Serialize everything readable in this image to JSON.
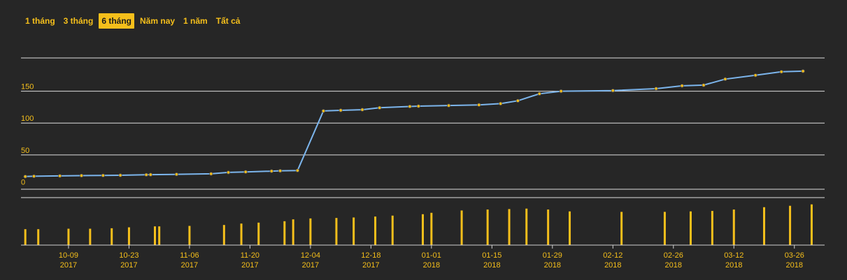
{
  "range_selector": {
    "buttons": [
      "1 tháng",
      "3 tháng",
      "6 tháng",
      "Năm nay",
      "1 năm",
      "Tất cả"
    ],
    "active_index": 2
  },
  "colors": {
    "background": "#262626",
    "line": "#7cb5ec",
    "marker_fill": "#f5bf1b",
    "volume_bar": "#f5bf1b",
    "gridline": "#ffffff",
    "text": "#f5bf1b"
  },
  "chart_data": {
    "type": "line",
    "title": "",
    "x_axis": {
      "type": "date",
      "min": "2017-09-28",
      "max": "2018-04-02",
      "ticks": [
        {
          "date": "2017-10-09",
          "day_label": "10-09",
          "year_label": "2017"
        },
        {
          "date": "2017-10-23",
          "day_label": "10-23",
          "year_label": "2017"
        },
        {
          "date": "2017-11-06",
          "day_label": "11-06",
          "year_label": "2017"
        },
        {
          "date": "2017-11-20",
          "day_label": "11-20",
          "year_label": "2017"
        },
        {
          "date": "2017-12-04",
          "day_label": "12-04",
          "year_label": "2017"
        },
        {
          "date": "2017-12-18",
          "day_label": "12-18",
          "year_label": "2017"
        },
        {
          "date": "2018-01-01",
          "day_label": "01-01",
          "year_label": "2018"
        },
        {
          "date": "2018-01-15",
          "day_label": "01-15",
          "year_label": "2018"
        },
        {
          "date": "2018-01-29",
          "day_label": "01-29",
          "year_label": "2018"
        },
        {
          "date": "2018-02-12",
          "day_label": "02-12",
          "year_label": "2018"
        },
        {
          "date": "2018-02-26",
          "day_label": "02-26",
          "year_label": "2018"
        },
        {
          "date": "2018-03-12",
          "day_label": "03-12",
          "year_label": "2018"
        },
        {
          "date": "2018-03-26",
          "day_label": "03-26",
          "year_label": "2018"
        }
      ]
    },
    "y_axis": {
      "min": -5,
      "max": 200,
      "grid": true,
      "ticks": [
        0,
        50,
        100,
        150
      ]
    },
    "series": [
      {
        "type": "line",
        "points": [
          {
            "x": "2017-09-29",
            "y": 16
          },
          {
            "x": "2017-10-01",
            "y": 16.5
          },
          {
            "x": "2017-10-07",
            "y": 17
          },
          {
            "x": "2017-10-12",
            "y": 17.5
          },
          {
            "x": "2017-10-17",
            "y": 17.7
          },
          {
            "x": "2017-10-21",
            "y": 18
          },
          {
            "x": "2017-10-27",
            "y": 18.8
          },
          {
            "x": "2017-10-28",
            "y": 19
          },
          {
            "x": "2017-11-03",
            "y": 19.5
          },
          {
            "x": "2017-11-11",
            "y": 20.3
          },
          {
            "x": "2017-11-15",
            "y": 22.5
          },
          {
            "x": "2017-11-19",
            "y": 23.3
          },
          {
            "x": "2017-11-25",
            "y": 24.5
          },
          {
            "x": "2017-11-27",
            "y": 25
          },
          {
            "x": "2017-12-01",
            "y": 25.5
          },
          {
            "x": "2017-12-07",
            "y": 119
          },
          {
            "x": "2017-12-11",
            "y": 120
          },
          {
            "x": "2017-12-16",
            "y": 121
          },
          {
            "x": "2017-12-20",
            "y": 124
          },
          {
            "x": "2017-12-27",
            "y": 126
          },
          {
            "x": "2017-12-29",
            "y": 126.5
          },
          {
            "x": "2018-01-05",
            "y": 127.5
          },
          {
            "x": "2018-01-12",
            "y": 128.5
          },
          {
            "x": "2018-01-17",
            "y": 130.5
          },
          {
            "x": "2018-01-21",
            "y": 135
          },
          {
            "x": "2018-01-26",
            "y": 146
          },
          {
            "x": "2018-01-31",
            "y": 150
          },
          {
            "x": "2018-02-12",
            "y": 151
          },
          {
            "x": "2018-02-22",
            "y": 154
          },
          {
            "x": "2018-02-28",
            "y": 158.5
          },
          {
            "x": "2018-03-05",
            "y": 159.5
          },
          {
            "x": "2018-03-10",
            "y": 169
          },
          {
            "x": "2018-03-17",
            "y": 175
          },
          {
            "x": "2018-03-23",
            "y": 180.5
          },
          {
            "x": "2018-03-28",
            "y": 181.5
          }
        ]
      },
      {
        "type": "bar",
        "note_scale": "relative volume 0-1",
        "points": [
          {
            "x": "2017-09-29",
            "v": 0.34
          },
          {
            "x": "2017-10-02",
            "v": 0.34
          },
          {
            "x": "2017-10-09",
            "v": 0.35
          },
          {
            "x": "2017-10-14",
            "v": 0.35
          },
          {
            "x": "2017-10-19",
            "v": 0.36
          },
          {
            "x": "2017-10-23",
            "v": 0.38
          },
          {
            "x": "2017-10-29",
            "v": 0.4
          },
          {
            "x": "2017-10-30",
            "v": 0.4
          },
          {
            "x": "2017-11-06",
            "v": 0.41
          },
          {
            "x": "2017-11-14",
            "v": 0.43
          },
          {
            "x": "2017-11-18",
            "v": 0.46
          },
          {
            "x": "2017-11-22",
            "v": 0.48
          },
          {
            "x": "2017-11-28",
            "v": 0.51
          },
          {
            "x": "2017-11-30",
            "v": 0.55
          },
          {
            "x": "2017-12-04",
            "v": 0.57
          },
          {
            "x": "2017-12-10",
            "v": 0.58
          },
          {
            "x": "2017-12-14",
            "v": 0.59
          },
          {
            "x": "2017-12-19",
            "v": 0.61
          },
          {
            "x": "2017-12-23",
            "v": 0.63
          },
          {
            "x": "2017-12-30",
            "v": 0.66
          },
          {
            "x": "2018-01-01",
            "v": 0.69
          },
          {
            "x": "2018-01-08",
            "v": 0.74
          },
          {
            "x": "2018-01-14",
            "v": 0.76
          },
          {
            "x": "2018-01-19",
            "v": 0.77
          },
          {
            "x": "2018-01-23",
            "v": 0.78
          },
          {
            "x": "2018-01-28",
            "v": 0.76
          },
          {
            "x": "2018-02-02",
            "v": 0.72
          },
          {
            "x": "2018-02-14",
            "v": 0.71
          },
          {
            "x": "2018-02-24",
            "v": 0.71
          },
          {
            "x": "2018-03-02",
            "v": 0.72
          },
          {
            "x": "2018-03-07",
            "v": 0.73
          },
          {
            "x": "2018-03-12",
            "v": 0.76
          },
          {
            "x": "2018-03-19",
            "v": 0.81
          },
          {
            "x": "2018-03-25",
            "v": 0.84
          },
          {
            "x": "2018-03-30",
            "v": 0.87
          }
        ]
      }
    ]
  }
}
